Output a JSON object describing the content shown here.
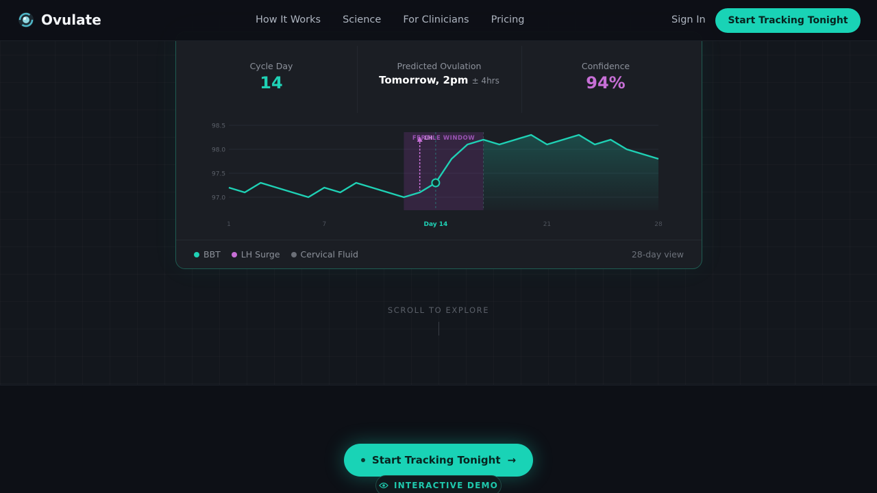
{
  "nav": {
    "brand": "Ovulate",
    "links": [
      "How It Works",
      "Science",
      "For Clinicians",
      "Pricing"
    ],
    "sign_in": "Sign In",
    "cta": "Start Tracking Tonight"
  },
  "stats": {
    "cycle_day_label": "Cycle Day",
    "cycle_day_value": "14",
    "prediction_label": "Predicted Ovulation",
    "prediction_value": "Tomorrow, 2pm",
    "prediction_margin": "± 4hrs",
    "confidence_label": "Confidence",
    "confidence_value": "94%"
  },
  "chart_data": {
    "type": "line",
    "title": "",
    "xlabel": "",
    "ylabel": "",
    "x_tick_labels": [
      "1",
      "7",
      "Day 14",
      "21",
      "28"
    ],
    "y_tick_labels": [
      "98.5",
      "98.0",
      "97.5",
      "97.0"
    ],
    "xlim": [
      1,
      28
    ],
    "ylim": [
      96.9,
      98.6
    ],
    "series": [
      {
        "name": "BBT",
        "color": "#1fd1b5",
        "x": [
          1,
          2,
          3,
          4,
          5,
          6,
          7,
          8,
          9,
          10,
          11,
          12,
          13,
          14,
          15,
          16,
          17,
          18,
          19,
          20,
          21,
          22,
          23,
          24,
          25,
          26,
          27,
          28
        ],
        "y": [
          97.2,
          97.1,
          97.3,
          97.2,
          97.1,
          97.0,
          97.2,
          97.1,
          97.3,
          97.2,
          97.1,
          97.0,
          97.1,
          97.3,
          97.8,
          98.1,
          98.2,
          98.1,
          98.2,
          98.3,
          98.1,
          98.2,
          98.3,
          98.1,
          98.2,
          98.0,
          97.9,
          97.8
        ]
      }
    ],
    "current_day": 14,
    "fertile_window": [
      12,
      17
    ],
    "fertile_window_label": "FERTILE WINDOW",
    "lh_marker_label": "LH",
    "grid": true
  },
  "legend": {
    "items": [
      {
        "label": "BBT",
        "color": "#1fd1b5"
      },
      {
        "label": "LH Surge",
        "color": "#c76fd6"
      },
      {
        "label": "Cervical Fluid",
        "color": "#6b6f77"
      }
    ],
    "view_label": "28-day view"
  },
  "scroll": {
    "label": "SCROLL TO EXPLORE"
  },
  "cta": {
    "label": "Start Tracking Tonight",
    "arrow": "→",
    "demo_label": "INTERACTIVE DEMO"
  }
}
